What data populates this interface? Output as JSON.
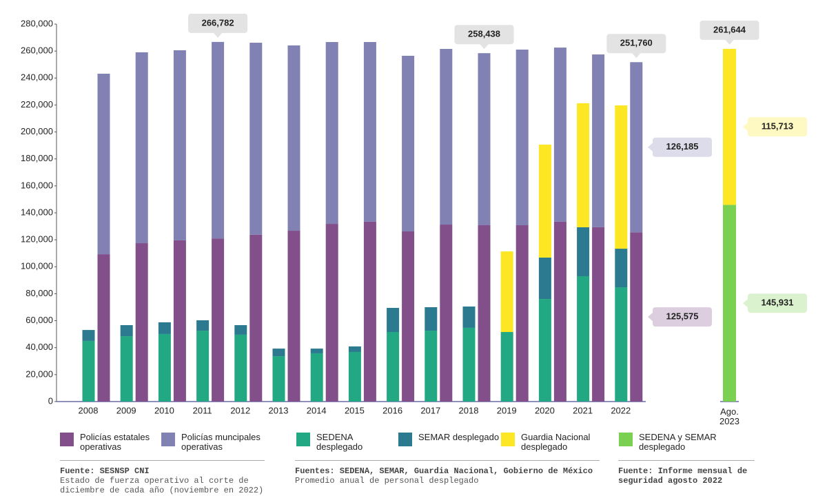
{
  "chart_data": [
    {
      "type": "bar",
      "categories": [
        "2008",
        "2009",
        "2010",
        "2011",
        "2012",
        "2013",
        "2014",
        "2015",
        "2016",
        "2017",
        "2018",
        "2019",
        "2020",
        "2021",
        "2022"
      ],
      "series": [
        {
          "name": "Policías estatales operativas",
          "color": "#834f8b",
          "values": [
            109300,
            117500,
            119600,
            121000,
            123700,
            126700,
            131800,
            133400,
            126200,
            131300,
            130800,
            130800,
            133400,
            129300,
            125575
          ],
          "value_labels": [
            null,
            null,
            null,
            null,
            null,
            null,
            null,
            null,
            null,
            null,
            null,
            null,
            null,
            null,
            "125,575"
          ]
        },
        {
          "name": "Policías muncipales operativas",
          "color": "#8181b4",
          "values": [
            133900,
            141600,
            141000,
            145782,
            142500,
            137500,
            134900,
            133300,
            130300,
            130300,
            127638,
            130300,
            129200,
            128200,
            126185
          ],
          "value_labels": [
            null,
            null,
            null,
            null,
            null,
            null,
            null,
            null,
            null,
            null,
            null,
            null,
            null,
            null,
            "126,185"
          ]
        },
        {
          "name": "SEDENA desplegado",
          "color": "#23a884",
          "values": [
            45000,
            48500,
            50100,
            52600,
            49600,
            33700,
            35800,
            36800,
            51600,
            52600,
            54700,
            51600,
            76100,
            93000,
            84800
          ]
        },
        {
          "name": "SEMAR desplegado",
          "color": "#2b7a8f",
          "values": [
            8100,
            8200,
            8700,
            7700,
            7100,
            5600,
            3500,
            4100,
            17900,
            17400,
            15800,
            null,
            30700,
            36300,
            28600
          ]
        },
        {
          "name": "Guardia Nacional desplegado",
          "color": "#fde725",
          "values": [
            null,
            null,
            null,
            null,
            null,
            null,
            null,
            null,
            null,
            null,
            null,
            59800,
            83800,
            92000,
            106300
          ]
        }
      ],
      "annotations": [
        {
          "category": "2011",
          "value": 266782,
          "label": "266,782"
        },
        {
          "category": "2018",
          "value": 258438,
          "label": "258,438"
        },
        {
          "category": "2022",
          "value": 251760,
          "label": "251,760"
        }
      ],
      "ylim": [
        0,
        280000
      ],
      "yticks": [
        0,
        {
          "value": 20000,
          "label": "20,000"
        },
        {
          "value": 40000,
          "label": "40,000"
        },
        {
          "value": 60000,
          "label": "60,000"
        },
        {
          "value": 80000,
          "label": "80,000"
        },
        {
          "value": 100000,
          "label": "100,000"
        },
        {
          "value": 120000,
          "label": "120,000"
        },
        {
          "value": 140000,
          "label": "140,000"
        },
        {
          "value": 160000,
          "label": "160,000"
        },
        {
          "value": 180000,
          "label": "180,000"
        },
        {
          "value": 200000,
          "label": "200,000"
        },
        {
          "value": 220000,
          "label": "220,000"
        },
        {
          "value": 240000,
          "label": "240,000"
        },
        {
          "value": 260000,
          "label": "260,000"
        },
        {
          "value": 280000,
          "label": "280,000"
        }
      ]
    },
    {
      "type": "bar",
      "categories": [
        "Ago. 2023"
      ],
      "series": [
        {
          "name": "SEDENA y SEMAR desplegado",
          "color": "#7ad151",
          "values": [
            145931
          ],
          "value_labels": [
            "145,931"
          ]
        },
        {
          "color": "#fde725",
          "values": [
            115713
          ],
          "value_labels": [
            "115,713"
          ]
        }
      ],
      "annotations": [
        {
          "category": "Ago. 2023",
          "value": 261644,
          "label": "261,644"
        }
      ]
    }
  ],
  "sources": [
    {
      "source": "Fuente: SESNSP CNI",
      "text": "Estado de fuerza operativo al corte de diciembre de cada año (noviembre en 2022)"
    },
    {
      "source": "Fuentes: SEDENA, SEMAR, Guardia Nacional, Gobierno de México",
      "text": "Promedio anual de personal desplegado"
    },
    {
      "source": "Fuente: Informe mensual de seguridad agosto 2022"
    }
  ]
}
